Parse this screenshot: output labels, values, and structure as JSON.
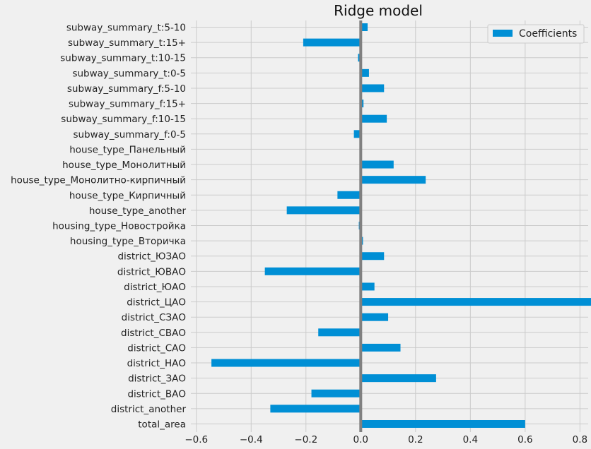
{
  "chart_data": {
    "type": "bar",
    "orientation": "horizontal",
    "title": "Ridge model",
    "xlabel": "",
    "ylabel": "",
    "xlim": [
      -0.62,
      0.83
    ],
    "xticks": [
      -0.6,
      -0.4,
      -0.2,
      0.0,
      0.2,
      0.4,
      0.6,
      0.8
    ],
    "xtick_labels": [
      "−0.6",
      "−0.4",
      "−0.2",
      "0.0",
      "0.2",
      "0.4",
      "0.6",
      "0.8"
    ],
    "grid": true,
    "legend_position": "top-right",
    "bar_color": "#008fd5",
    "zero_line_color": "#808080",
    "series": [
      {
        "name": "Coefficients",
        "categories": [
          "total_area",
          "district_another",
          "district_ВАО",
          "district_ЗАО",
          "district_НАО",
          "district_САО",
          "district_СВАО",
          "district_СЗАО",
          "district_ЦАО",
          "district_ЮАО",
          "district_ЮВАО",
          "district_ЮЗАО",
          "housing_type_Вторичка",
          "housing_type_Новостройка",
          "house_type_another",
          "house_type_Кирпичный",
          "house_type_Монолитно-кирпичный",
          "house_type_Монолитный",
          "house_type_Панельный",
          "subway_summary_f:0-5",
          "subway_summary_f:10-15",
          "subway_summary_f:15+",
          "subway_summary_f:5-10",
          "subway_summary_t:0-5",
          "subway_summary_t:10-15",
          "subway_summary_t:15+",
          "subway_summary_t:5-10"
        ],
        "values": [
          0.6,
          -0.33,
          -0.18,
          0.275,
          -0.545,
          0.145,
          -0.155,
          0.1,
          0.895,
          0.05,
          -0.35,
          0.085,
          0.008,
          -0.007,
          -0.27,
          -0.085,
          0.237,
          0.12,
          0.0,
          -0.025,
          0.095,
          0.01,
          0.085,
          0.03,
          -0.01,
          -0.21,
          0.025
        ]
      }
    ]
  }
}
